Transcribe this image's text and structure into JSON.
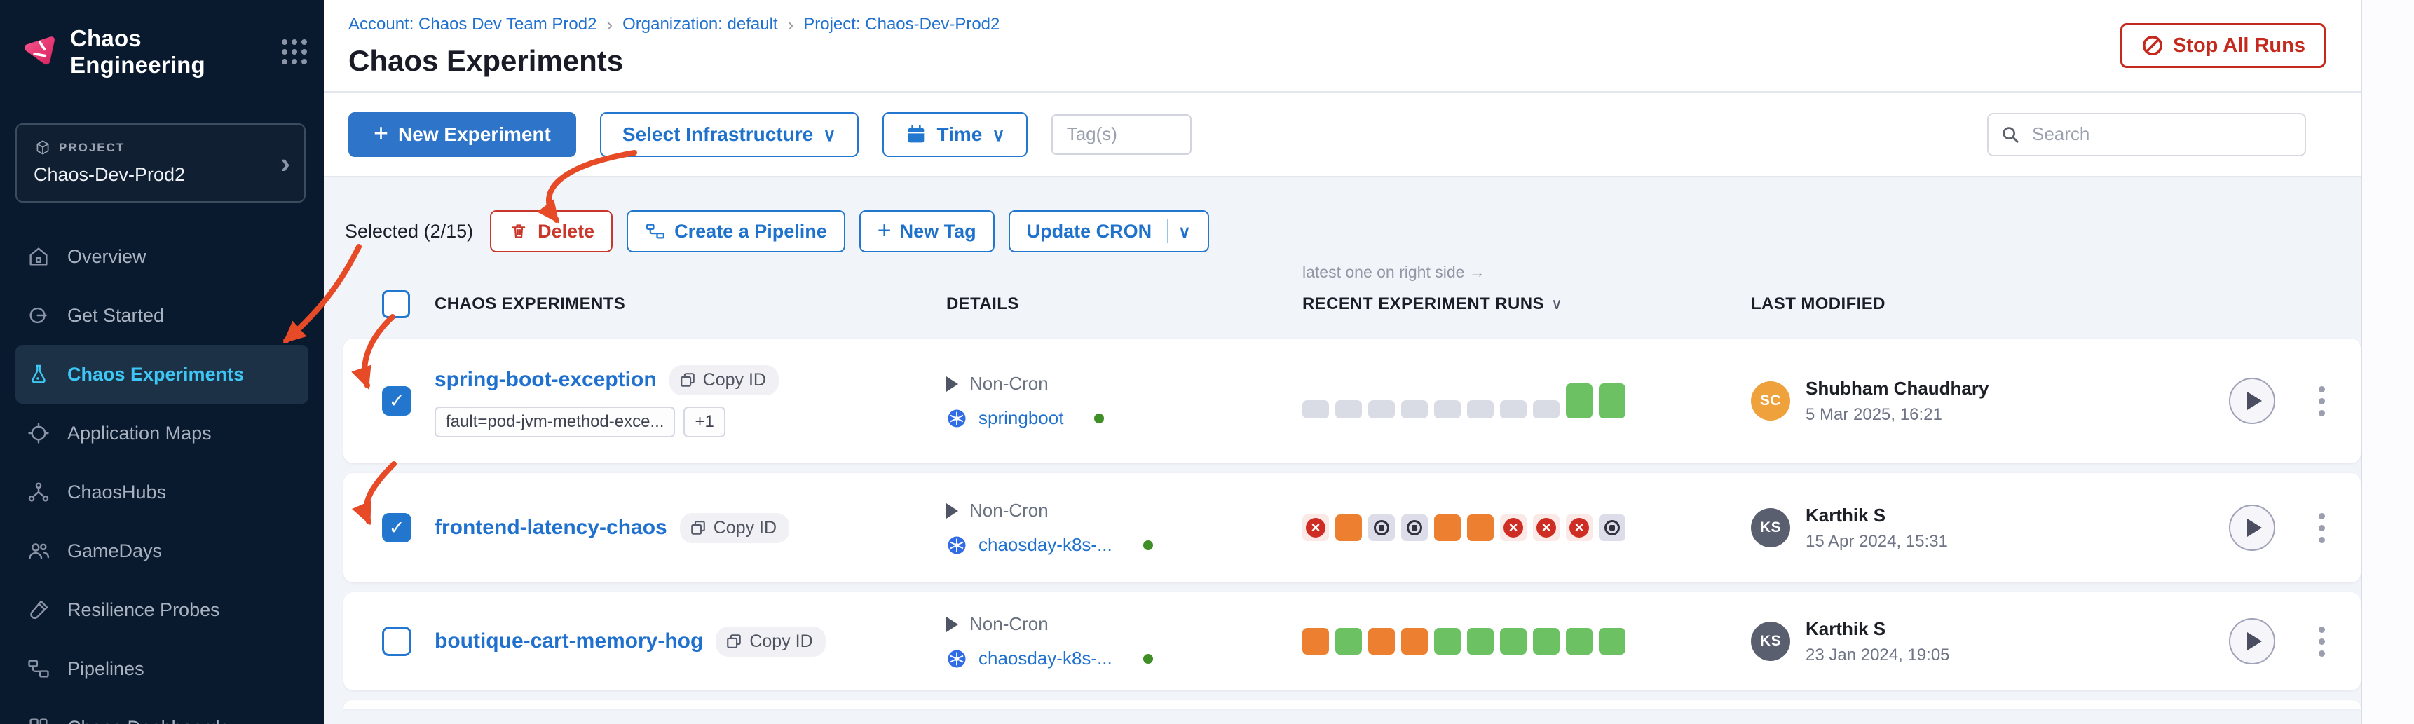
{
  "app": {
    "product_name": "Chaos Engineering"
  },
  "sidebar": {
    "project_label": "PROJECT",
    "project_name": "Chaos-Dev-Prod2",
    "nav": [
      {
        "label": "Overview"
      },
      {
        "label": "Get Started"
      },
      {
        "label": "Chaos Experiments",
        "active": true
      },
      {
        "label": "Application Maps"
      },
      {
        "label": "ChaosHubs"
      },
      {
        "label": "GameDays"
      },
      {
        "label": "Resilience Probes"
      },
      {
        "label": "Pipelines"
      },
      {
        "label": "Chaos Dashboards"
      }
    ]
  },
  "breadcrumb": {
    "account": "Account: Chaos Dev Team Prod2",
    "organization": "Organization: default",
    "project": "Project: Chaos-Dev-Prod2",
    "separator": "›"
  },
  "page_title": "Chaos Experiments",
  "actions": {
    "stop_all_runs": "Stop All Runs"
  },
  "toolbar": {
    "new_experiment": "New Experiment",
    "select_infrastructure": "Select Infrastructure",
    "time": "Time",
    "tags_placeholder": "Tag(s)",
    "search_placeholder": "Search"
  },
  "selection": {
    "selected_count": "Selected (2/15)",
    "delete": "Delete",
    "create_pipeline": "Create a Pipeline",
    "new_tag": "New Tag",
    "update_cron": "Update CRON"
  },
  "table": {
    "runs_note": "latest one on right side →",
    "headers": {
      "experiments": "CHAOS EXPERIMENTS",
      "details": "DETAILS",
      "runs": "RECENT EXPERIMENT RUNS",
      "last_modified": "LAST MODIFIED"
    },
    "rows": [
      {
        "name": "spring-boot-exception",
        "copy_label": "Copy ID",
        "checked": true,
        "tags": [
          "fault=pod-jvm-method-exce...",
          "+1"
        ],
        "schedule": "Non-Cron",
        "infrastructure": "springboot",
        "runs": [
          "empty",
          "empty",
          "empty",
          "empty",
          "empty",
          "empty",
          "empty",
          "empty",
          "completed_tall",
          "completed_tall"
        ],
        "modified": {
          "initials": "SC",
          "name": "Shubham Chaudhary",
          "date": "5 Mar 2025, 16:21",
          "avatar_color": "#efa13b"
        }
      },
      {
        "name": "frontend-latency-chaos",
        "copy_label": "Copy ID",
        "checked": true,
        "tags": [],
        "schedule": "Non-Cron",
        "infrastructure": "chaosday-k8s-...",
        "runs": [
          "failed",
          "running",
          "stopped",
          "stopped",
          "running",
          "running",
          "failed",
          "failed",
          "failed",
          "stopped"
        ],
        "modified": {
          "initials": "KS",
          "name": "Karthik S",
          "date": "15 Apr 2024, 15:31",
          "avatar_color": "#5a5f70"
        }
      },
      {
        "name": "boutique-cart-memory-hog",
        "copy_label": "Copy ID",
        "checked": false,
        "tags": [],
        "schedule": "Non-Cron",
        "infrastructure": "chaosday-k8s-...",
        "runs": [
          "running",
          "completed",
          "running",
          "running",
          "completed",
          "completed",
          "completed",
          "completed",
          "completed",
          "completed"
        ],
        "modified": {
          "initials": "KS",
          "name": "Karthik S",
          "date": "23 Jan 2024, 19:05",
          "avatar_color": "#5a5f70"
        }
      }
    ]
  },
  "icons": {
    "plus": "+",
    "check": "✓",
    "chevron_down": "∨",
    "chevron_right": "›",
    "failed_x": "×"
  },
  "colors": {
    "primary_blue": "#2e74c9",
    "link_blue": "#2071cf",
    "danger_red": "#c5281c",
    "brand_pink": "#f21d64",
    "nav_active_blue": "#3ec6f5",
    "run_green": "#6cc262",
    "run_orange": "#ec8030",
    "run_grey": "#d9dbe5",
    "failed_red": "#cd2d23",
    "status_green": "#3f8e26",
    "sidebar_bg": "#0a1a2e",
    "content_bg": "#f1f4f9",
    "annotation_red": "#e64a26"
  }
}
